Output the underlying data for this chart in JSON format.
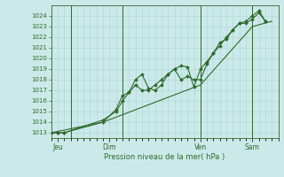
{
  "xlabel": "Pression niveau de la mer( hPa )",
  "ylim": [
    1012.5,
    1025.0
  ],
  "xlim": [
    0,
    210
  ],
  "yticks": [
    1013,
    1014,
    1015,
    1016,
    1017,
    1018,
    1019,
    1020,
    1021,
    1022,
    1023,
    1024
  ],
  "bg_color": "#cce9e9",
  "grid_color": "#aad4d4",
  "line_color": "#2d6a2d",
  "day_labels": [
    "Jeu",
    "Dim",
    "Ven",
    "Sam"
  ],
  "day_positions": [
    6,
    54,
    138,
    186
  ],
  "vline_positions": [
    18,
    66,
    138,
    186
  ],
  "series1_x": [
    0,
    6,
    12,
    48,
    60,
    66,
    72,
    78,
    84,
    90,
    96,
    102,
    108,
    114,
    120,
    126,
    132,
    138,
    144,
    150,
    156,
    162,
    168,
    174,
    180,
    186,
    192,
    198
  ],
  "series1_y": [
    1013.0,
    1013.0,
    1013.0,
    1014.0,
    1015.2,
    1016.5,
    1016.8,
    1017.5,
    1017.0,
    1017.0,
    1017.5,
    1018.0,
    1018.5,
    1019.0,
    1019.3,
    1019.2,
    1017.3,
    1019.0,
    1019.7,
    1020.5,
    1021.5,
    1021.8,
    1022.7,
    1023.3,
    1023.3,
    1023.7,
    1024.3,
    1023.5
  ],
  "series2_x": [
    0,
    6,
    12,
    48,
    60,
    66,
    72,
    78,
    84,
    90,
    96,
    102,
    108,
    114,
    120,
    126,
    132,
    138,
    144,
    150,
    156,
    162,
    168,
    174,
    180,
    186,
    192,
    198
  ],
  "series2_y": [
    1013.0,
    1013.0,
    1013.0,
    1014.2,
    1015.0,
    1016.0,
    1016.8,
    1018.0,
    1018.5,
    1017.2,
    1017.0,
    1017.5,
    1018.5,
    1019.0,
    1018.0,
    1018.3,
    1018.0,
    1018.0,
    1019.5,
    1020.5,
    1021.2,
    1022.0,
    1022.7,
    1023.3,
    1023.5,
    1024.0,
    1024.5,
    1023.5
  ],
  "series3_x": [
    0,
    48,
    138,
    186,
    204
  ],
  "series3_y": [
    1013.0,
    1014.0,
    1017.5,
    1023.0,
    1023.5
  ]
}
